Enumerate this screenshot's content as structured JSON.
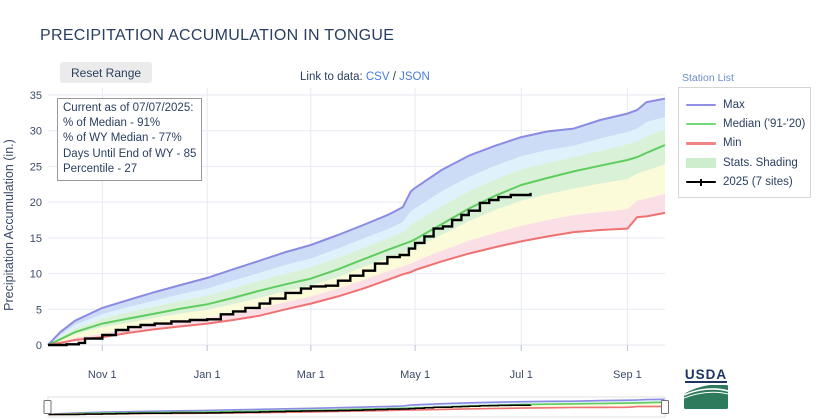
{
  "title": "PRECIPITATION ACCUMULATION IN TONGUE",
  "controls": {
    "reset_label": "Reset Range",
    "link_prefix": "Link to data: ",
    "csv_label": "CSV",
    "separator": " / ",
    "json_label": "JSON",
    "station_list_label": "Station List"
  },
  "annotation": {
    "lines": [
      "Current as of 07/07/2025:",
      "% of Median - 91%",
      "% of WY Median - 77%",
      "Days Until End of WY - 85",
      "Percentile - 27"
    ]
  },
  "legend": {
    "items": [
      {
        "label": "Max",
        "swatch": "line",
        "color": "#8f8fe6"
      },
      {
        "label": "Median ('91-'20)",
        "swatch": "line",
        "color": "#74d874"
      },
      {
        "label": "Min",
        "swatch": "line",
        "color": "#ef8484"
      },
      {
        "label": "Stats. Shading",
        "swatch": "box",
        "color": "#cdeecd"
      },
      {
        "label": "2025 (7 sites)",
        "swatch": "line-tick",
        "color": "#000000"
      }
    ]
  },
  "branding": {
    "usda_text": "USDA"
  },
  "chart_data": {
    "type": "line",
    "title": "PRECIPITATION ACCUMULATION IN TONGUE",
    "xlabel": "",
    "ylabel": "Precipitation Accumulation (in.)",
    "ylim": [
      0,
      35
    ],
    "yticks": [
      0,
      5,
      10,
      15,
      20,
      25,
      30,
      35
    ],
    "xticks": [
      {
        "t": 0.088,
        "label": "Nov 1"
      },
      {
        "t": 0.258,
        "label": "Jan 1"
      },
      {
        "t": 0.426,
        "label": "Mar 1"
      },
      {
        "t": 0.595,
        "label": "May 1"
      },
      {
        "t": 0.767,
        "label": "Jul 1"
      },
      {
        "t": 0.939,
        "label": "Sep 1"
      }
    ],
    "grid": true,
    "legend_position": "top-right",
    "t": [
      0,
      0.02,
      0.044,
      0.088,
      0.13,
      0.173,
      0.215,
      0.258,
      0.3,
      0.343,
      0.385,
      0.426,
      0.47,
      0.511,
      0.553,
      0.575,
      0.588,
      0.595,
      0.638,
      0.682,
      0.725,
      0.767,
      0.81,
      0.852,
      0.895,
      0.939,
      0.955,
      0.97,
      1
    ],
    "stat_series": [
      {
        "id": "max",
        "name": "Max",
        "line": true,
        "color": "#8b8be4",
        "width": 2,
        "values": [
          0,
          1.8,
          3.4,
          5.2,
          6.3,
          7.4,
          8.4,
          9.4,
          10.6,
          11.8,
          13,
          14,
          15.4,
          16.8,
          18.3,
          19.3,
          21.5,
          22,
          24.5,
          26.5,
          27.9,
          29.1,
          29.9,
          30.3,
          31.5,
          32.4,
          32.9,
          34,
          34.5
        ]
      },
      {
        "id": "p90",
        "name": "90th percentile",
        "line": false,
        "color": null,
        "width": 0,
        "values": [
          0,
          1.4,
          2.8,
          4.3,
          5.3,
          6.2,
          7.1,
          7.9,
          9,
          10.1,
          11.2,
          12.1,
          13.5,
          14.9,
          16.3,
          17.2,
          18.7,
          19.1,
          21.5,
          23.5,
          25.1,
          26.4,
          27.3,
          27.9,
          28.9,
          29.8,
          30.3,
          31.2,
          31.9
        ]
      },
      {
        "id": "p70",
        "name": "70th percentile",
        "line": false,
        "color": null,
        "width": 0,
        "values": [
          0,
          1.1,
          2.3,
          3.7,
          4.6,
          5.4,
          6.2,
          6.9,
          7.9,
          9,
          10,
          10.9,
          12.2,
          13.6,
          15,
          15.8,
          16.8,
          17.2,
          19.4,
          21.5,
          23.2,
          24.6,
          25.5,
          26.3,
          27.2,
          28.1,
          28.5,
          29.2,
          30.2
        ]
      },
      {
        "id": "median",
        "name": "Median ('91-'20)",
        "line": true,
        "color": "#5fcc5f",
        "width": 2,
        "values": [
          0,
          0.8,
          1.8,
          3,
          3.7,
          4.4,
          5.1,
          5.7,
          6.6,
          7.6,
          8.5,
          9.3,
          10.6,
          12,
          13.4,
          14.1,
          14.5,
          14.8,
          16.9,
          19.1,
          20.9,
          22.4,
          23.4,
          24.3,
          25.1,
          25.9,
          26.3,
          26.9,
          28
        ]
      },
      {
        "id": "p30",
        "name": "30th percentile",
        "line": false,
        "color": null,
        "width": 0,
        "values": [
          0,
          0.7,
          1.5,
          2.5,
          3.1,
          3.8,
          4.4,
          4.9,
          5.7,
          6.6,
          7.5,
          8.3,
          9.5,
          10.9,
          12.2,
          12.9,
          13.3,
          13.6,
          15.4,
          17.3,
          18.9,
          20.2,
          21.1,
          21.9,
          22.6,
          23.2,
          24,
          24.4,
          25.3
        ]
      },
      {
        "id": "p10",
        "name": "10th percentile",
        "line": false,
        "color": null,
        "width": 0,
        "values": [
          0,
          0.4,
          1,
          1.6,
          2.3,
          2.8,
          3.3,
          3.8,
          4.4,
          5.1,
          6,
          6.8,
          7.9,
          9.1,
          10.4,
          11,
          11.4,
          11.7,
          13.2,
          14.6,
          15.7,
          16.7,
          17.5,
          18.2,
          18.6,
          19,
          20.2,
          20.5,
          21.2
        ]
      },
      {
        "id": "min",
        "name": "Min",
        "line": true,
        "color": "#ee7272",
        "width": 2,
        "values": [
          0,
          0.3,
          0.7,
          1.1,
          1.7,
          2.2,
          2.6,
          3,
          3.5,
          4.1,
          5,
          5.8,
          6.8,
          7.9,
          9.2,
          9.9,
          10.2,
          10.5,
          11.7,
          12.8,
          13.7,
          14.5,
          15.2,
          15.8,
          16.1,
          16.3,
          17.9,
          18,
          18.5
        ]
      }
    ],
    "areas": [
      {
        "upper": "max",
        "lower": "p90",
        "fill": "#cddcf6",
        "name": "band-90-max"
      },
      {
        "upper": "p90",
        "lower": "p70",
        "fill": "#dff1fb",
        "name": "band-70-90"
      },
      {
        "upper": "p70",
        "lower": "p30",
        "fill": "#d9f2d7",
        "name": "band-30-70"
      },
      {
        "upper": "p30",
        "lower": "p10",
        "fill": "#fbfbd9",
        "name": "band-10-30"
      },
      {
        "upper": "p10",
        "lower": "min",
        "fill": "#fbdfe6",
        "name": "band-min-10"
      }
    ],
    "current_series": {
      "name": "2025 (7 sites)",
      "color": "#000000",
      "width": 2.4,
      "step": true,
      "t": [
        0,
        0.03,
        0.05,
        0.06,
        0.088,
        0.11,
        0.13,
        0.15,
        0.173,
        0.2,
        0.23,
        0.258,
        0.28,
        0.3,
        0.32,
        0.343,
        0.36,
        0.385,
        0.41,
        0.426,
        0.45,
        0.47,
        0.49,
        0.511,
        0.53,
        0.55,
        0.57,
        0.585,
        0.595,
        0.61,
        0.625,
        0.64,
        0.655,
        0.67,
        0.682,
        0.7,
        0.715,
        0.73,
        0.75,
        0.767,
        0.782
      ],
      "values": [
        0,
        0.1,
        0.3,
        0.9,
        1.4,
        2.1,
        2.5,
        2.8,
        3,
        3.3,
        3.5,
        3.6,
        4.3,
        4.7,
        5.2,
        5.8,
        6.5,
        7.3,
        7.9,
        8.2,
        8.3,
        9,
        9.7,
        10.4,
        11.4,
        12.3,
        12.6,
        13.5,
        14.3,
        15.2,
        16.3,
        16.6,
        17.5,
        18.2,
        18.8,
        19.9,
        20.3,
        20.7,
        21,
        21,
        21.3
      ]
    }
  }
}
